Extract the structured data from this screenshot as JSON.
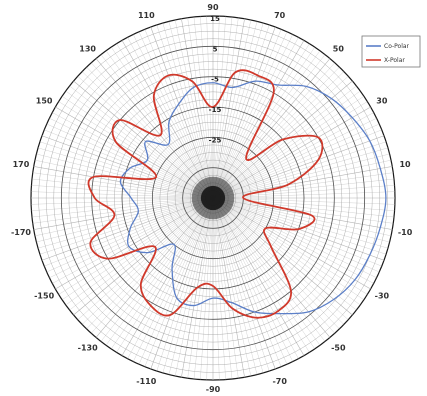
{
  "chart_data": {
    "type": "line",
    "polar": true,
    "title": "",
    "angle_labels": [
      "90",
      "70",
      "50",
      "30",
      "10",
      "-10",
      "-30",
      "-50",
      "-70",
      "-90",
      "-110",
      "-130",
      "-150",
      "-170",
      "170",
      "150",
      "130",
      "110"
    ],
    "radial_labels": [
      "15",
      "5",
      "-5",
      "-15",
      "-25"
    ],
    "radial_range": [
      -45,
      15
    ],
    "grid": true,
    "legend_position": "top-right",
    "series": [
      {
        "name": "Co-Polar",
        "color": "#5b7fc8",
        "angles": [
          -180,
          -170,
          -160,
          -150,
          -140,
          -130,
          -120,
          -110,
          -100,
          -90,
          -80,
          -70,
          -60,
          -50,
          -40,
          -30,
          -20,
          -10,
          0,
          10,
          20,
          30,
          40,
          50,
          60,
          70,
          80,
          90,
          100,
          110,
          120,
          130,
          140,
          150,
          160,
          170
        ],
        "values": [
          -18,
          -20,
          -16,
          -13,
          -17,
          -25,
          -18,
          -10,
          -9,
          -12,
          -10,
          -5,
          -1,
          4,
          7,
          9,
          10,
          11,
          12,
          11,
          10,
          8,
          6,
          3,
          -2,
          -4,
          -8,
          -7,
          -8,
          -12,
          -16,
          -22,
          -16,
          -20,
          -16,
          -14
        ]
      },
      {
        "name": "X-Polar",
        "color": "#d0392b",
        "angles": [
          -180,
          -170,
          -160,
          -150,
          -140,
          -130,
          -120,
          -110,
          -100,
          -90,
          -80,
          -70,
          -60,
          -50,
          -40,
          -30,
          -20,
          -10,
          0,
          10,
          20,
          30,
          40,
          50,
          60,
          70,
          80,
          90,
          100,
          110,
          120,
          130,
          140,
          150,
          160,
          170
        ],
        "values": [
          -6,
          -12,
          -2,
          -5,
          -20,
          -8,
          -4,
          -4,
          -15,
          -16,
          -8,
          -3,
          -2,
          -5,
          -20,
          -25,
          -15,
          -12,
          -35,
          -20,
          -8,
          -5,
          -15,
          -28,
          -5,
          -2,
          -3,
          -15,
          -6,
          -2,
          -6,
          -18,
          -5,
          -8,
          -25,
          -5
        ]
      }
    ]
  }
}
